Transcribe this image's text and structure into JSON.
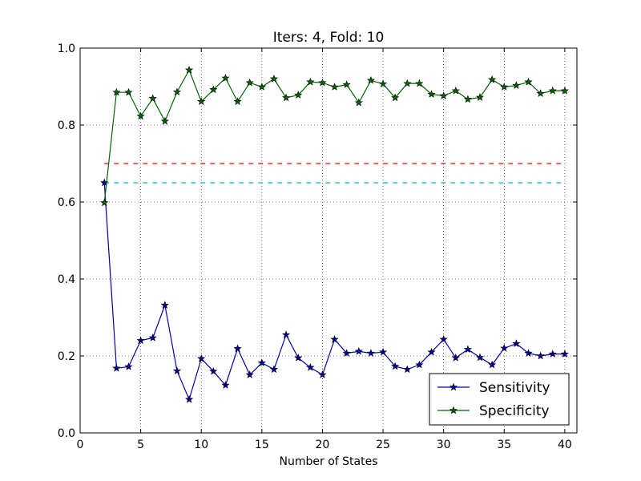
{
  "chart_data": {
    "type": "line",
    "title": "Iters: 4, Fold: 10",
    "xlabel": "Number of States",
    "ylabel": "",
    "xlim": [
      0,
      41
    ],
    "ylim": [
      0.0,
      1.0
    ],
    "xticks": [
      0,
      5,
      10,
      15,
      20,
      25,
      30,
      35,
      40
    ],
    "yticks": [
      0.0,
      0.2,
      0.4,
      0.6,
      0.8,
      1.0
    ],
    "xtick_labels": [
      "0",
      "5",
      "10",
      "15",
      "20",
      "25",
      "30",
      "35",
      "40"
    ],
    "ytick_labels": [
      "0.0",
      "0.2",
      "0.4",
      "0.6",
      "0.8",
      "1.0"
    ],
    "grid": true,
    "legend_position": "bottom-right",
    "x": [
      2,
      3,
      4,
      5,
      6,
      7,
      8,
      9,
      10,
      11,
      12,
      13,
      14,
      15,
      16,
      17,
      18,
      19,
      20,
      21,
      22,
      23,
      24,
      25,
      26,
      27,
      28,
      29,
      30,
      31,
      32,
      33,
      34,
      35,
      36,
      37,
      38,
      39,
      40
    ],
    "series": [
      {
        "name": "Sensitivity",
        "color": "#0000aa",
        "marker": "star",
        "values": [
          0.65,
          0.168,
          0.172,
          0.24,
          0.247,
          0.332,
          0.161,
          0.087,
          0.193,
          0.16,
          0.124,
          0.219,
          0.151,
          0.182,
          0.165,
          0.255,
          0.195,
          0.17,
          0.151,
          0.243,
          0.207,
          0.212,
          0.207,
          0.21,
          0.173,
          0.165,
          0.177,
          0.21,
          0.243,
          0.195,
          0.217,
          0.196,
          0.177,
          0.22,
          0.232,
          0.207,
          0.2,
          0.205,
          0.205
        ]
      },
      {
        "name": "Specificity",
        "color": "#006400",
        "marker": "star",
        "values": [
          0.598,
          0.885,
          0.885,
          0.823,
          0.869,
          0.81,
          0.886,
          0.943,
          0.861,
          0.892,
          0.922,
          0.861,
          0.91,
          0.899,
          0.92,
          0.871,
          0.878,
          0.912,
          0.91,
          0.899,
          0.905,
          0.858,
          0.916,
          0.907,
          0.871,
          0.908,
          0.908,
          0.88,
          0.876,
          0.889,
          0.867,
          0.872,
          0.918,
          0.899,
          0.903,
          0.912,
          0.882,
          0.889,
          0.889
        ]
      }
    ],
    "reference_lines": [
      {
        "y": 0.7,
        "x_range": [
          2,
          40
        ],
        "color": "#ff0000",
        "style": "dashed"
      },
      {
        "y": 0.65,
        "x_range": [
          2,
          40
        ],
        "color": "#00bfbf",
        "style": "dashed"
      }
    ]
  }
}
